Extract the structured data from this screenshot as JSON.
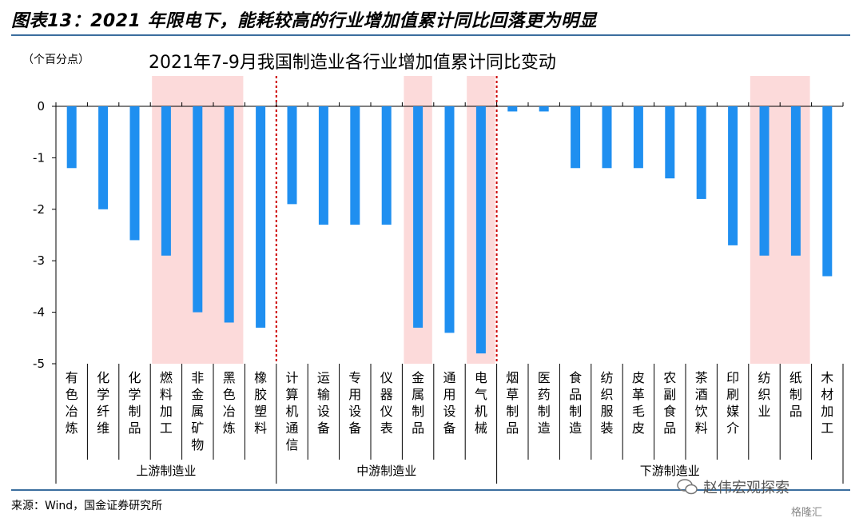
{
  "figure_title": "图表13：2021 年限电下，能耗较高的行业增加值累计同比回落更为明显",
  "unit_label": "（个百分点）",
  "source": "来源：Wind，国金证券研究所",
  "watermark": "赵伟宏观探索",
  "watermark2": "格隆汇",
  "colors": {
    "bar": "#1f8ff0",
    "highlight": "#fcdada",
    "divider": "#cc0000",
    "rule": "#3b6e9e"
  },
  "chart_data": {
    "type": "bar",
    "title": "2021年7-9月我国制造业各行业增加值累计同比变动",
    "ylabel": "（个百分点）",
    "ylim": [
      -5,
      0
    ],
    "yticks": [
      "0",
      "-1",
      "-2",
      "-3",
      "-4",
      "-5"
    ],
    "categories": [
      "有色冶炼",
      "化学纤维",
      "化学制品",
      "燃料加工",
      "非金属矿物",
      "黑色冶炼",
      "橡胶塑料",
      "计算机通信",
      "运输设备",
      "专用设备",
      "仪器仪表",
      "金属制品",
      "通用设备",
      "电气机械",
      "烟草制品",
      "医药制造",
      "食品制造",
      "纺织服装",
      "皮革毛皮",
      "农副食品",
      "茶酒饮料",
      "印刷媒介",
      "纺织业",
      "纸制品",
      "木材加工"
    ],
    "values": [
      -1.2,
      -2.0,
      -2.6,
      -2.9,
      -4.0,
      -4.2,
      -4.3,
      -1.9,
      -2.3,
      -2.3,
      -2.3,
      -4.3,
      -4.4,
      -4.8,
      -0.1,
      -0.1,
      -1.2,
      -1.2,
      -1.2,
      -1.4,
      -1.8,
      -2.7,
      -2.9,
      -2.9,
      -3.3
    ],
    "groups": [
      {
        "label": "上游制造业",
        "start": 0,
        "end": 6
      },
      {
        "label": "中游制造业",
        "start": 7,
        "end": 13
      },
      {
        "label": "下游制造业",
        "start": 14,
        "end": 24
      }
    ],
    "highlights": [
      [
        3,
        5
      ],
      [
        11,
        11
      ],
      [
        13,
        13
      ],
      [
        22,
        23
      ]
    ]
  }
}
